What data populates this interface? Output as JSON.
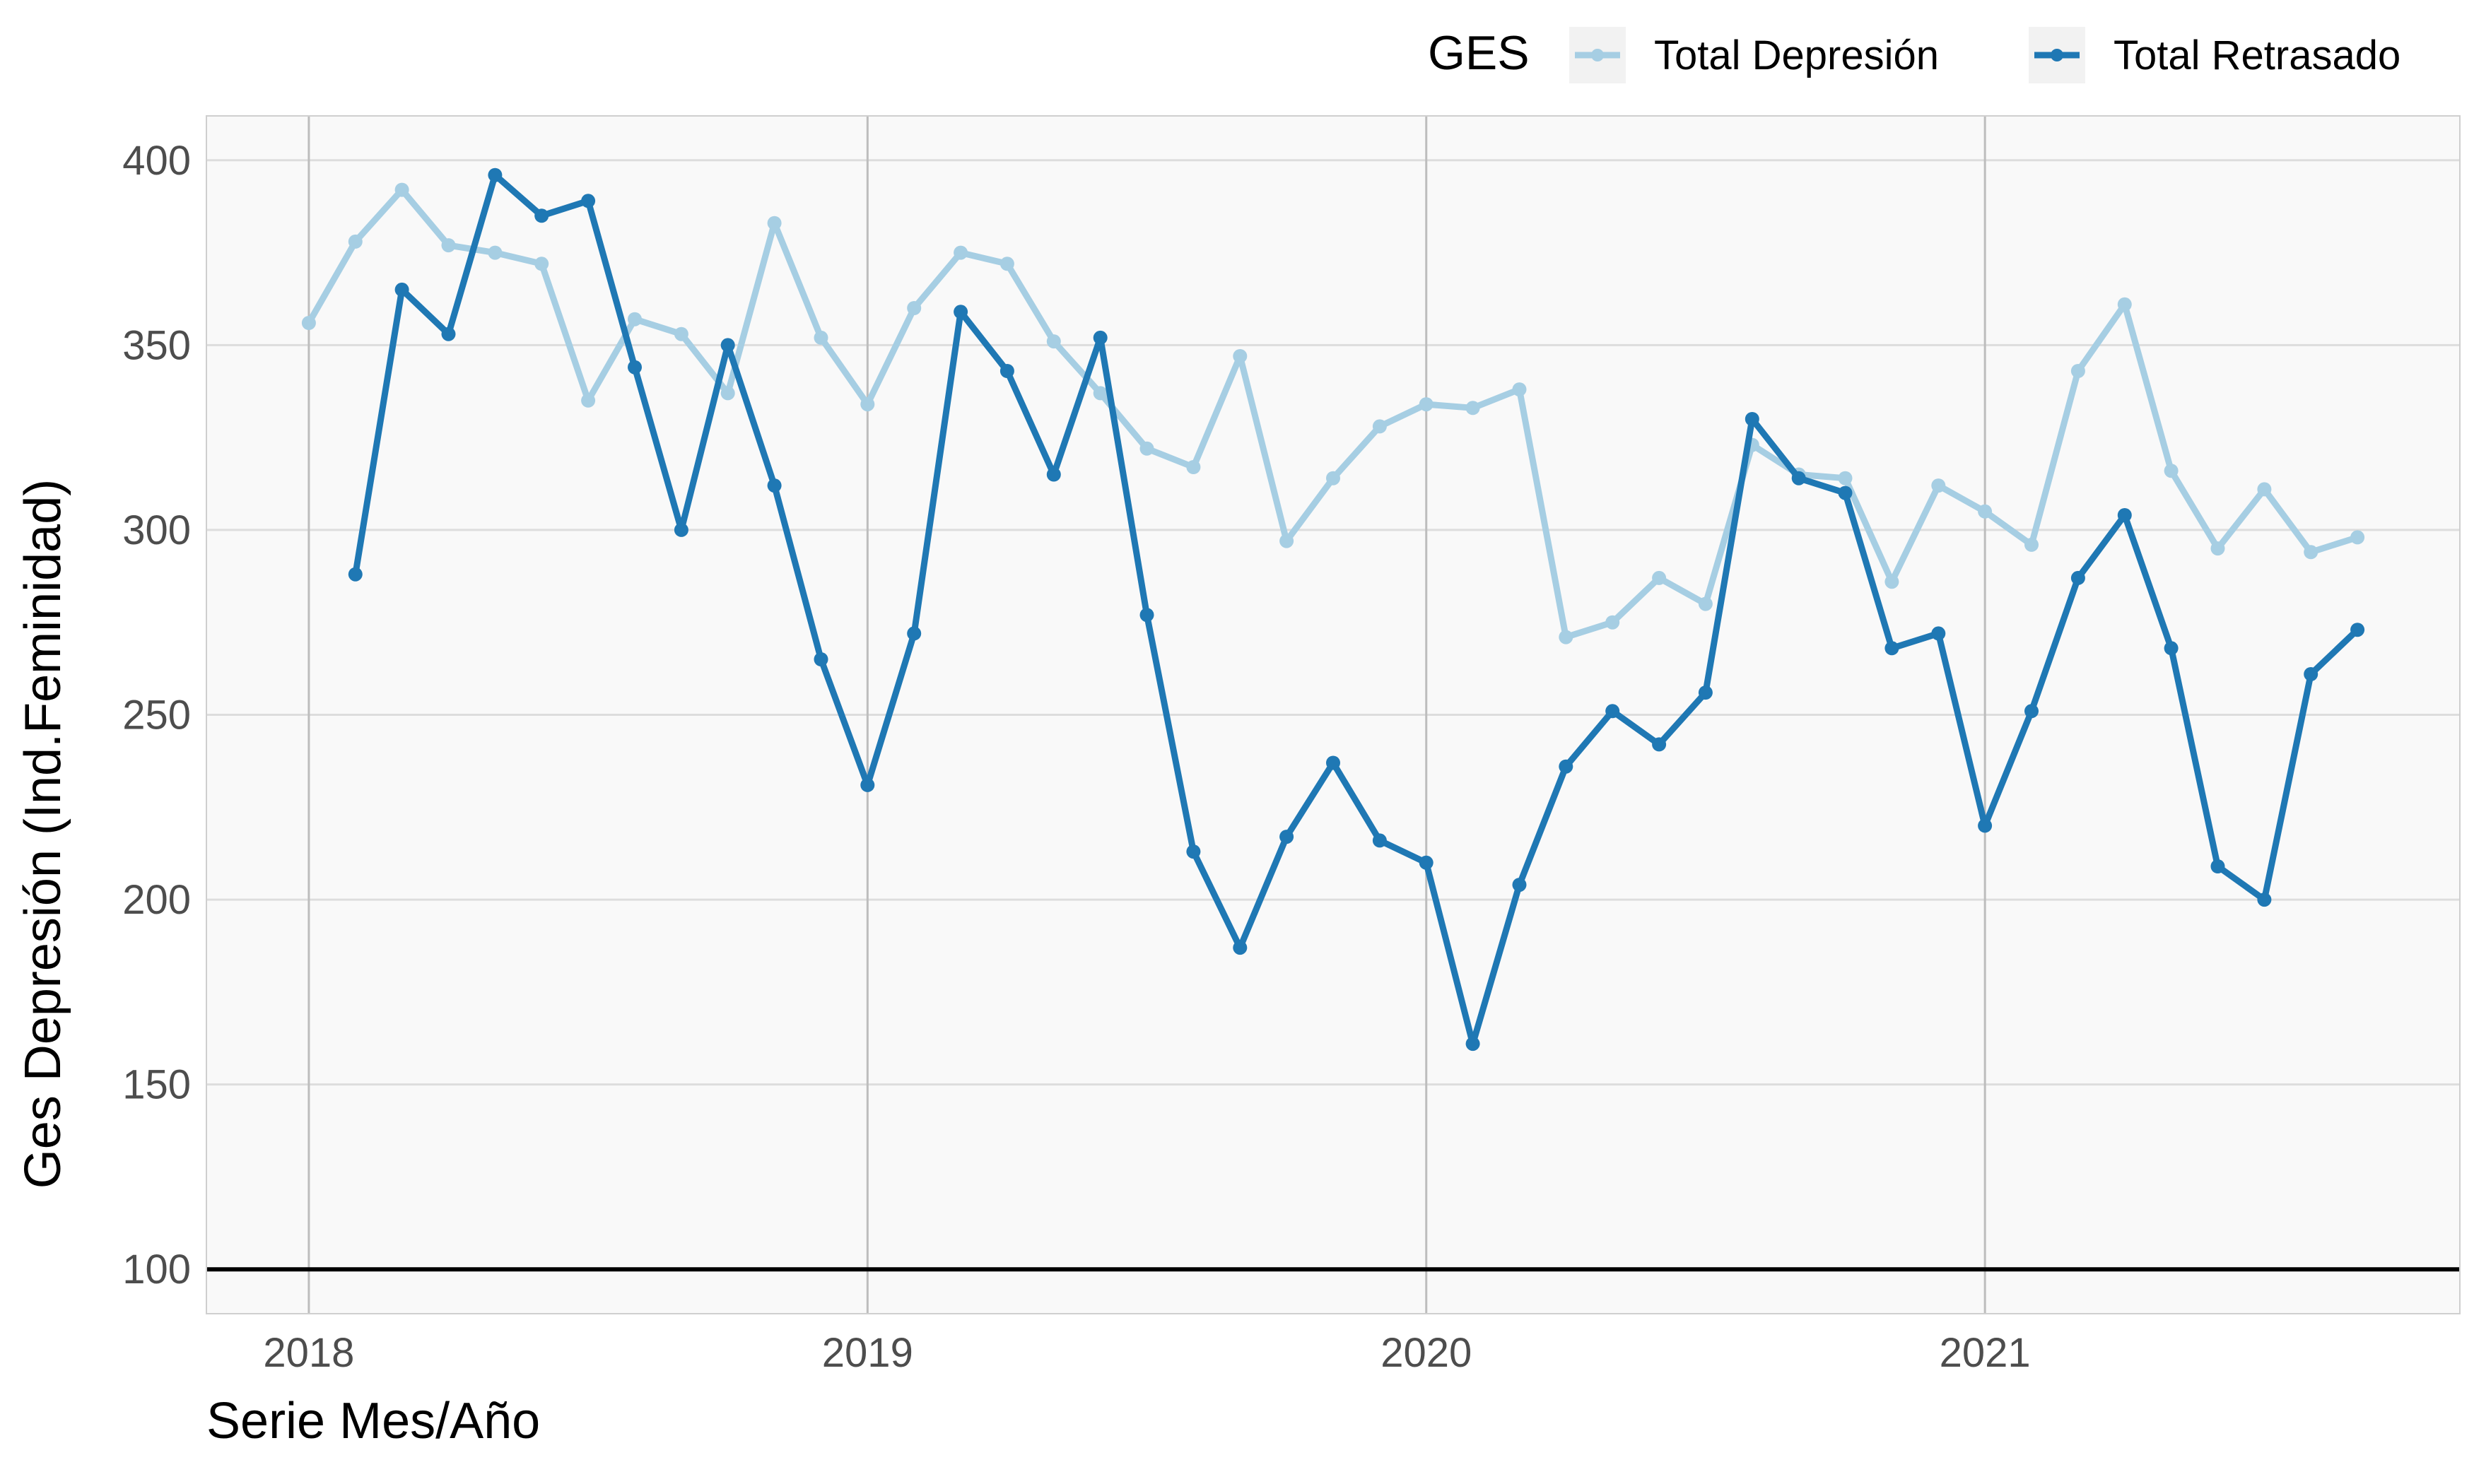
{
  "chart_data": {
    "type": "line",
    "xlabel": "Serie Mes/Año",
    "ylabel": "Ges Depresión (Ind.Feminidad)",
    "ylim": [
      88,
      412
    ],
    "yticks": [
      100,
      150,
      200,
      250,
      300,
      350,
      400
    ],
    "reference_line": 100,
    "grid": true,
    "legend": {
      "title": "GES",
      "position": "top-right"
    },
    "x_ticks": [
      {
        "label": "2018",
        "month": 0
      },
      {
        "label": "2019",
        "month": 12
      },
      {
        "label": "2020",
        "month": 24
      },
      {
        "label": "2021",
        "month": 36
      }
    ],
    "x_month_range": [
      -2.2,
      46.2
    ],
    "series": [
      {
        "name": "Total Depresión",
        "color": "#a6cee3",
        "start": "2018-01",
        "values": [
          356,
          378,
          392,
          377,
          375,
          372,
          335,
          357,
          353,
          337,
          383,
          352,
          334,
          360,
          375,
          372,
          351,
          337,
          322,
          317,
          347,
          297,
          314,
          328,
          334,
          333,
          338,
          271,
          275,
          287,
          280,
          323,
          315,
          314,
          286,
          312,
          305,
          296,
          343,
          361,
          316,
          295,
          311,
          294,
          298
        ]
      },
      {
        "name": "Total Retrasado",
        "color": "#1f78b4",
        "start": "2018-02",
        "values": [
          288,
          365,
          353,
          396,
          385,
          389,
          344,
          300,
          350,
          312,
          265,
          231,
          272,
          359,
          343,
          315,
          352,
          277,
          213,
          187,
          217,
          237,
          216,
          210,
          161,
          204,
          236,
          251,
          242,
          256,
          330,
          314,
          310,
          268,
          272,
          220,
          251,
          287,
          304,
          268,
          209,
          200,
          261,
          273
        ]
      }
    ]
  }
}
